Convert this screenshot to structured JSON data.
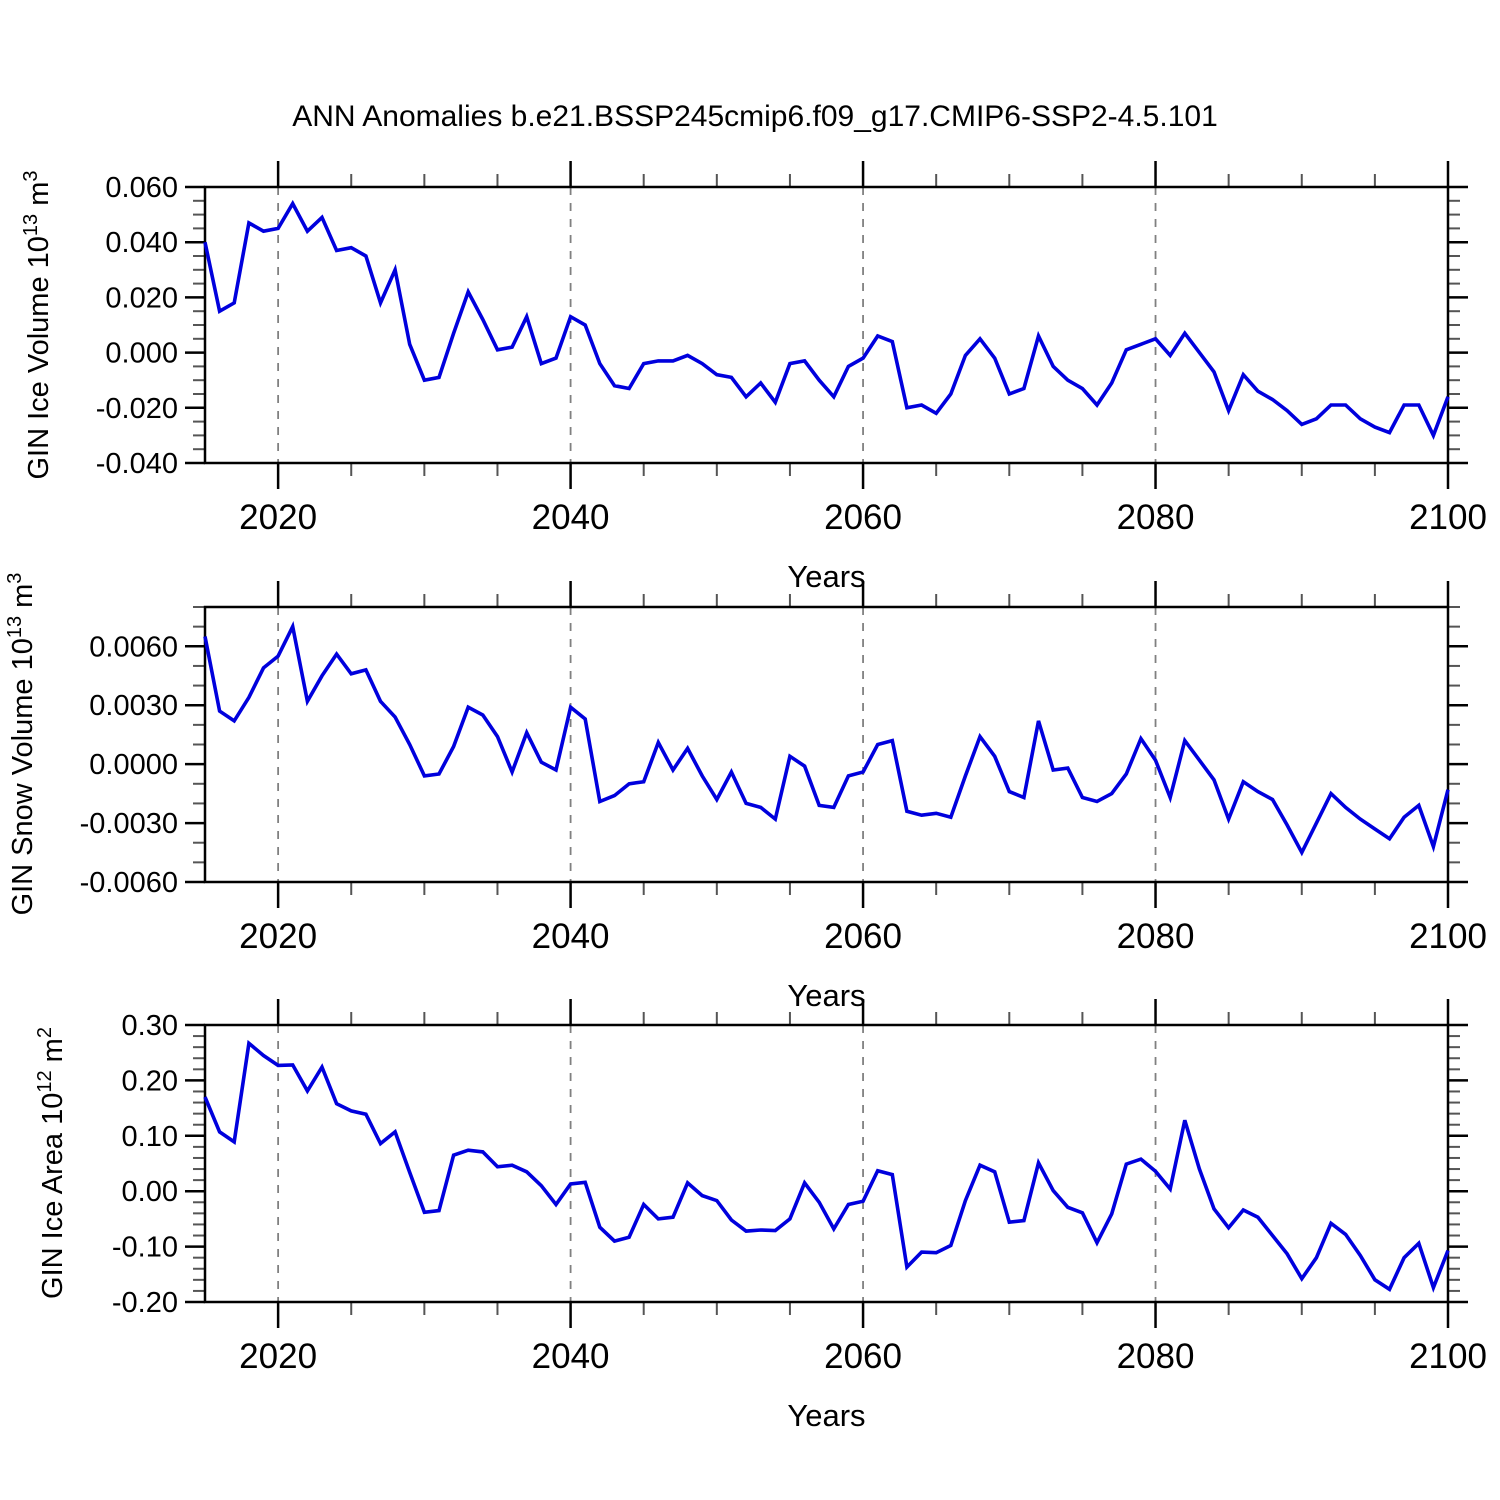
{
  "title": "ANN Anomalies b.e21.BSSP245cmip6.f09_g17.CMIP6-SSP2-4.5.101",
  "colors": {
    "line": "#0000dd",
    "grid": "#808080",
    "frame": "#000000",
    "minor_tick": "#555555"
  },
  "chart_data": [
    {
      "type": "line",
      "ylabel": "GIN Ice Volume 10^13 m^3",
      "ylabel_parts": {
        "base": "GIN Ice Volume 10",
        "exp": "13",
        "unit": " m",
        "unit_exp": "3"
      },
      "xlabel": "Years",
      "x_start": 2015,
      "x_end": 2100,
      "xticks": [
        2020,
        2040,
        2060,
        2080,
        2100
      ],
      "xtick_labels": [
        "2020",
        "2040",
        "2060",
        "2080",
        "2100"
      ],
      "x_minor_step": 5,
      "grid_x": [
        2020,
        2040,
        2060,
        2080
      ],
      "ylim": [
        -0.04,
        0.06
      ],
      "yticks": [
        0.06,
        0.04,
        0.02,
        0.0,
        -0.02,
        -0.04
      ],
      "ytick_labels": [
        "0.060",
        "0.040",
        "0.020",
        "0.000",
        "-0.020",
        "-0.040"
      ],
      "y_minor_step": 0.005,
      "values": [
        0.04,
        0.015,
        0.018,
        0.047,
        0.044,
        0.045,
        0.054,
        0.044,
        0.049,
        0.037,
        0.038,
        0.035,
        0.018,
        0.03,
        0.003,
        -0.01,
        -0.009,
        0.007,
        0.022,
        0.012,
        0.001,
        0.002,
        0.013,
        -0.004,
        -0.002,
        0.013,
        0.01,
        -0.004,
        -0.012,
        -0.013,
        -0.004,
        -0.003,
        -0.003,
        -0.001,
        -0.004,
        -0.008,
        -0.009,
        -0.016,
        -0.011,
        -0.018,
        -0.004,
        -0.003,
        -0.01,
        -0.016,
        -0.005,
        -0.002,
        0.006,
        0.004,
        -0.02,
        -0.019,
        -0.022,
        -0.015,
        -0.001,
        0.005,
        -0.002,
        -0.015,
        -0.013,
        0.006,
        -0.005,
        -0.01,
        -0.013,
        -0.019,
        -0.011,
        0.001,
        0.003,
        0.005,
        -0.001,
        0.007,
        0.0,
        -0.007,
        -0.021,
        -0.008,
        -0.014,
        -0.017,
        -0.021,
        -0.026,
        -0.024,
        -0.019,
        -0.019,
        -0.024,
        -0.027,
        -0.029,
        -0.019,
        -0.019,
        -0.03,
        -0.016
      ]
    },
    {
      "type": "line",
      "ylabel": "GIN Snow Volume 10^13 m^3",
      "ylabel_parts": {
        "base": "GIN Snow Volume 10",
        "exp": "13",
        "unit": " m",
        "unit_exp": "3"
      },
      "xlabel": "Years",
      "x_start": 2015,
      "x_end": 2100,
      "xticks": [
        2020,
        2040,
        2060,
        2080,
        2100
      ],
      "xtick_labels": [
        "2020",
        "2040",
        "2060",
        "2080",
        "2100"
      ],
      "x_minor_step": 5,
      "grid_x": [
        2020,
        2040,
        2060,
        2080
      ],
      "ylim": [
        -0.006,
        0.008
      ],
      "yticks": [
        0.006,
        0.003,
        0.0,
        -0.003,
        -0.006
      ],
      "ytick_labels": [
        "0.0060",
        "0.0030",
        "0.0000",
        "-0.0030",
        "-0.0060"
      ],
      "y_minor_step": 0.001,
      "values": [
        0.0065,
        0.0027,
        0.0022,
        0.0034,
        0.0049,
        0.0055,
        0.007,
        0.0032,
        0.0045,
        0.0056,
        0.0046,
        0.0048,
        0.0032,
        0.0024,
        0.001,
        -0.0006,
        -0.0005,
        0.0009,
        0.0029,
        0.0025,
        0.0014,
        -0.0004,
        0.0016,
        0.0001,
        -0.0003,
        0.0029,
        0.0023,
        -0.0019,
        -0.0016,
        -0.001,
        -0.0009,
        0.0011,
        -0.0003,
        0.0008,
        -0.0006,
        -0.0018,
        -0.0004,
        -0.002,
        -0.0022,
        -0.0028,
        0.0004,
        -0.0001,
        -0.0021,
        -0.0022,
        -0.0006,
        -0.0004,
        0.001,
        0.0012,
        -0.0024,
        -0.0026,
        -0.0025,
        -0.0027,
        -0.0006,
        0.0014,
        0.0004,
        -0.0014,
        -0.0017,
        0.0022,
        -0.0003,
        -0.0002,
        -0.0017,
        -0.0019,
        -0.0015,
        -0.0005,
        0.0013,
        0.0002,
        -0.0017,
        0.0012,
        0.0002,
        -0.0008,
        -0.0028,
        -0.0009,
        -0.0014,
        -0.0018,
        -0.0031,
        -0.0045,
        -0.003,
        -0.0015,
        -0.0022,
        -0.0028,
        -0.0033,
        -0.0038,
        -0.0027,
        -0.0021,
        -0.0042,
        -0.0013
      ]
    },
    {
      "type": "line",
      "ylabel": "GIN Ice Area 10^12 m^2",
      "ylabel_parts": {
        "base": "GIN Ice Area 10",
        "exp": "12",
        "unit": " m",
        "unit_exp": "2"
      },
      "xlabel": "Years",
      "x_start": 2015,
      "x_end": 2100,
      "xticks": [
        2020,
        2040,
        2060,
        2080,
        2100
      ],
      "xtick_labels": [
        "2020",
        "2040",
        "2060",
        "2080",
        "2100"
      ],
      "x_minor_step": 5,
      "grid_x": [
        2020,
        2040,
        2060,
        2080
      ],
      "ylim": [
        -0.2,
        0.3
      ],
      "yticks": [
        0.3,
        0.2,
        0.1,
        0.0,
        -0.1,
        -0.2
      ],
      "ytick_labels": [
        "0.30",
        "0.20",
        "0.10",
        "0.00",
        "-0.10",
        "-0.20"
      ],
      "y_minor_step": 0.02,
      "values": [
        0.17,
        0.107,
        0.089,
        0.267,
        0.245,
        0.227,
        0.228,
        0.181,
        0.224,
        0.158,
        0.145,
        0.139,
        0.086,
        0.107,
        0.034,
        -0.038,
        -0.035,
        0.065,
        0.074,
        0.071,
        0.044,
        0.047,
        0.035,
        0.01,
        -0.024,
        0.013,
        0.016,
        -0.065,
        -0.09,
        -0.083,
        -0.024,
        -0.05,
        -0.047,
        0.015,
        -0.008,
        -0.017,
        -0.052,
        -0.072,
        -0.07,
        -0.071,
        -0.05,
        0.015,
        -0.02,
        -0.068,
        -0.024,
        -0.018,
        0.037,
        0.03,
        -0.137,
        -0.11,
        -0.111,
        -0.098,
        -0.017,
        0.047,
        0.035,
        -0.056,
        -0.053,
        0.051,
        0.001,
        -0.029,
        -0.039,
        -0.093,
        -0.041,
        0.049,
        0.058,
        0.036,
        0.004,
        0.128,
        0.04,
        -0.032,
        -0.066,
        -0.034,
        -0.047,
        -0.08,
        -0.113,
        -0.158,
        -0.12,
        -0.058,
        -0.078,
        -0.116,
        -0.16,
        -0.177,
        -0.12,
        -0.094,
        -0.174,
        -0.107
      ]
    }
  ]
}
